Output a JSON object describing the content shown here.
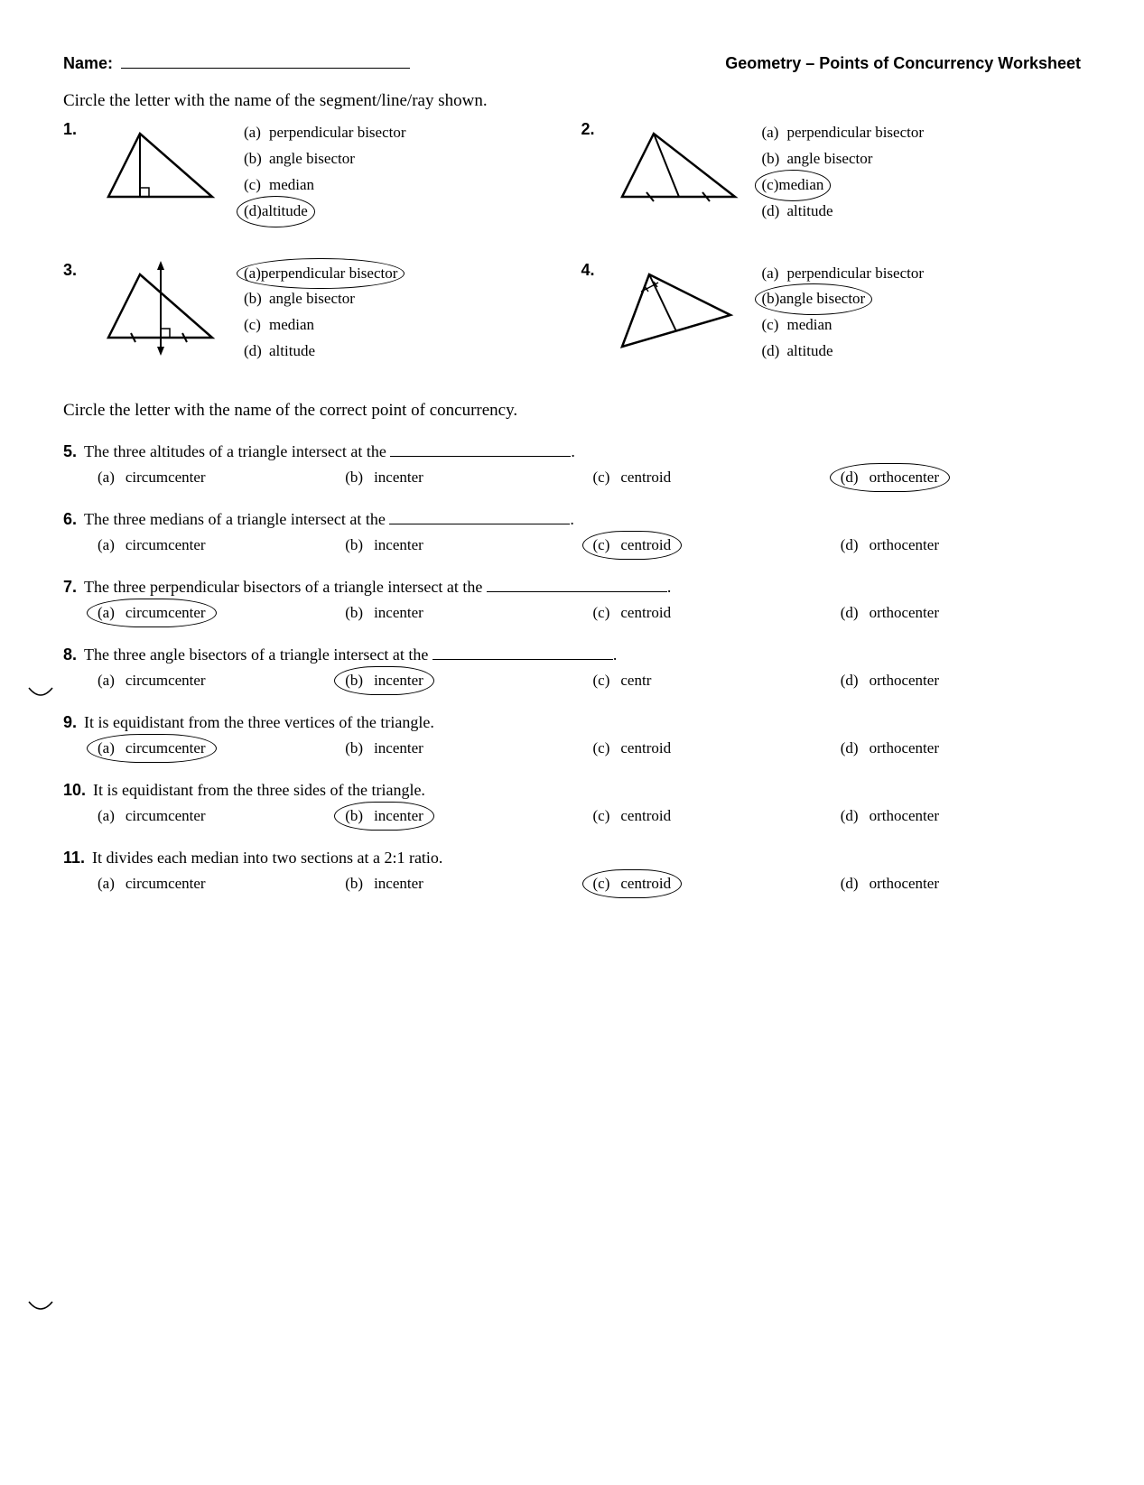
{
  "header": {
    "name_label": "Name:",
    "title": "Geometry – Points of Concurrency Worksheet"
  },
  "instruction1": "Circle the letter with the name of the segment/line/ray shown.",
  "instruction2": "Circle the letter with the name of the correct point of concurrency.",
  "diagram_options": {
    "a": "perpendicular bisector",
    "b": "angle bisector",
    "c": "median",
    "d": "altitude"
  },
  "diagram_questions": [
    {
      "num": "1.",
      "circled": "d"
    },
    {
      "num": "2.",
      "circled": "c"
    },
    {
      "num": "3.",
      "circled": "a"
    },
    {
      "num": "4.",
      "circled": "b"
    }
  ],
  "mc_options": {
    "a": "circumcenter",
    "b": "incenter",
    "c": "centroid",
    "d": "orthocenter"
  },
  "mc_questions": [
    {
      "num": "5.",
      "text": "The three altitudes of a triangle intersect at the ",
      "blank": true,
      "circled": "d"
    },
    {
      "num": "6.",
      "text": "The three medians of a triangle intersect at the ",
      "blank": true,
      "circled": "c"
    },
    {
      "num": "7.",
      "text": "The three perpendicular bisectors of a triangle intersect at the ",
      "blank": true,
      "circled": "a"
    },
    {
      "num": "8.",
      "text": "The three angle bisectors of a triangle intersect at the ",
      "blank": true,
      "circled": "b",
      "c_text": "centr"
    },
    {
      "num": "9.",
      "text": "It is equidistant from the three vertices of the triangle.",
      "blank": false,
      "circled": "a"
    },
    {
      "num": "10.",
      "text": "It is equidistant from the three sides of the triangle.",
      "blank": false,
      "circled": "b"
    },
    {
      "num": "11.",
      "text": "It divides each median into two sections at a 2:1 ratio.",
      "blank": false,
      "circled": "c"
    }
  ],
  "svg_style": {
    "stroke": "#000000",
    "stroke_width": 2.5,
    "fill": "none"
  }
}
